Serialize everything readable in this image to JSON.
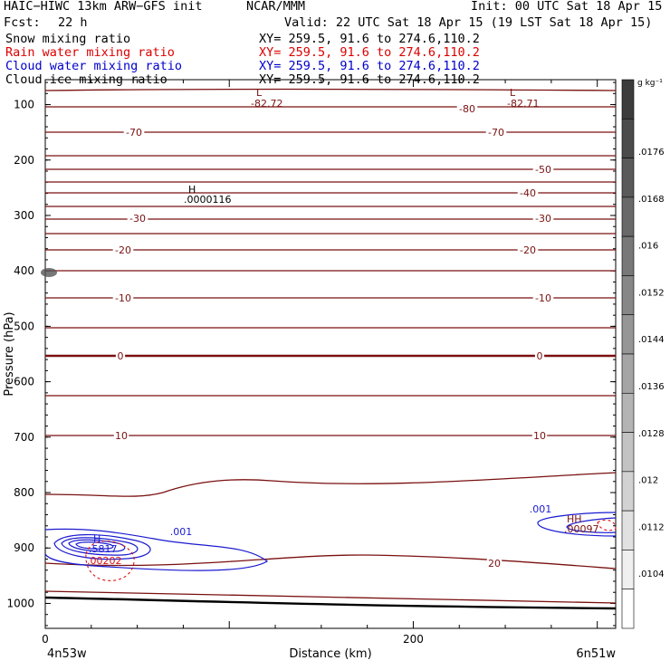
{
  "header": {
    "model": "HAIC−HIWC 13km ARW−GFS init",
    "org": "NCAR/MMM",
    "init": "Init: 00 UTC Sat 18 Apr 15",
    "fcst_label": "Fcst:",
    "fcst_value": "22 h",
    "valid": "Valid: 22 UTC Sat 18 Apr 15 (19 LST Sat 18 Apr 15)"
  },
  "fields": [
    {
      "name": "Snow mixing ratio",
      "xy": "XY= 259.5, 91.6 to 274.6,110.2",
      "color": "#000000"
    },
    {
      "name": "Rain water mixing ratio",
      "xy": "XY= 259.5, 91.6 to 274.6,110.2",
      "color": "#dd0000"
    },
    {
      "name": "Cloud water mixing ratio",
      "xy": "XY= 259.5, 91.6 to 274.6,110.2",
      "color": "#0000cc"
    },
    {
      "name": "Cloud ice mixing ratio",
      "xy": "XY= 259.5, 91.6 to 274.6,110.2",
      "color": "#000000"
    }
  ],
  "chart_data": {
    "type": "contour",
    "ylabel": "Pressure (hPa)",
    "xlabel": "Distance (km)",
    "y_ticks": [
      100,
      200,
      300,
      400,
      500,
      600,
      700,
      800,
      900,
      1000
    ],
    "x_ticks": [
      0,
      200
    ],
    "xlim": [
      0,
      310
    ],
    "ylim": [
      1045,
      55
    ],
    "y_scale": "linear, inverted",
    "x_end_labels": {
      "left": "4n53w",
      "right": "6n51w"
    },
    "temperature_labels": [
      "-82.72",
      "-82.71",
      "-80",
      "-70",
      "-50",
      "-40",
      "-30",
      "-20",
      "-10",
      "0",
      "10",
      "20"
    ],
    "extrema_labels": [
      {
        "mark": "L",
        "value": "-82.72"
      },
      {
        "mark": "L",
        "value": "-82.71"
      },
      {
        "mark": "H",
        "value": ".0000116"
      },
      {
        "mark": "H",
        "value": ".5817"
      },
      {
        "mark": "H",
        "value": ".00202"
      },
      {
        "mark": "HH",
        "value": ".00097"
      }
    ],
    "cloud_water_labels": [
      ".001",
      ".001"
    ],
    "colorbar": {
      "unit": "g kg⁻¹",
      "labels": [
        ".0176",
        ".0168",
        ".016",
        ".0152",
        ".0144",
        ".0136",
        ".0128",
        ".012",
        ".0112",
        ".0104"
      ]
    }
  }
}
